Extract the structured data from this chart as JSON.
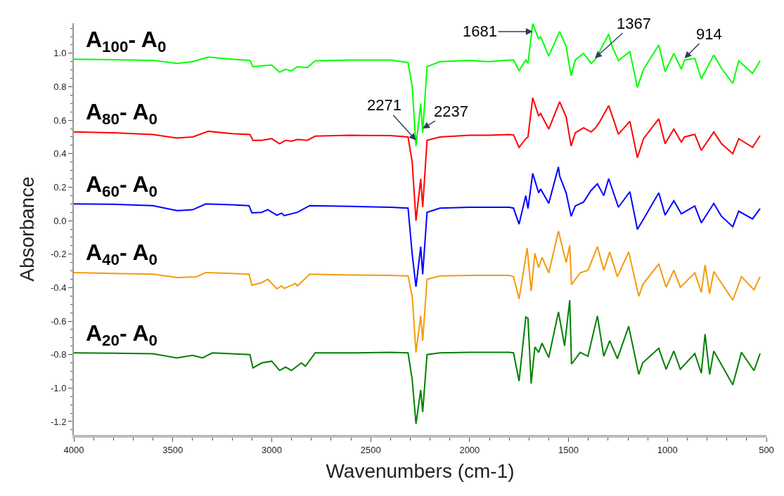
{
  "chart_data": {
    "type": "line",
    "xlabel": "Wavenumbers (cm-1)",
    "ylabel": "Absorbance",
    "xlim": [
      4000,
      500
    ],
    "xticks": [
      4000,
      3500,
      3000,
      2500,
      2000,
      1500,
      1000,
      500
    ],
    "ylim": [
      -1.28,
      1.18
    ],
    "yticks": [
      {
        "value": -1.2,
        "label": "-1.2"
      },
      {
        "value": -1.0,
        "label": "-1.0"
      },
      {
        "value": -0.8,
        "label": "-0.8"
      },
      {
        "value": -0.6,
        "label": "-0.6"
      },
      {
        "value": -0.4,
        "label": "-0.4"
      },
      {
        "value": -0.2,
        "label": "-0.2"
      },
      {
        "value": 0.0,
        "label": "0.0"
      },
      {
        "value": 0.2,
        "label": "0.2"
      },
      {
        "value": 0.4,
        "label": "0.4"
      },
      {
        "value": 0.6,
        "label": "0.6"
      },
      {
        "value": 0.8,
        "label": "0.8"
      },
      {
        "value": 1.0,
        "label": "1.0"
      }
    ],
    "line_style": "solid",
    "series": [
      {
        "name": "A$_{100}$- A$_{0}$",
        "color": "#00ff00",
        "x": [
          4000,
          3800,
          3600,
          3480,
          3400,
          3320,
          3200,
          3110,
          3095,
          3050,
          3000,
          2960,
          2930,
          2900,
          2870,
          2820,
          2780,
          2600,
          2400,
          2311,
          2290,
          2271,
          2247,
          2237,
          2215,
          2150,
          2000,
          1904,
          1800,
          1778,
          1750,
          1716,
          1705,
          1681,
          1651,
          1641,
          1600,
          1545,
          1512,
          1487,
          1466,
          1424,
          1386,
          1367,
          1348,
          1297,
          1283,
          1248,
          1190,
          1152,
          1121,
          1044,
          1012,
          968,
          930,
          914,
          862,
          829,
          766,
          727,
          670,
          640,
          570,
          532
        ],
        "values": [
          0.965,
          0.962,
          0.958,
          0.94,
          0.95,
          0.977,
          0.965,
          0.958,
          0.92,
          0.925,
          0.93,
          0.887,
          0.905,
          0.895,
          0.92,
          0.915,
          0.955,
          0.96,
          0.96,
          0.945,
          0.8,
          0.445,
          0.7,
          0.525,
          0.92,
          0.95,
          0.958,
          0.95,
          0.96,
          0.96,
          0.897,
          0.96,
          0.94,
          1.177,
          1.084,
          1.1,
          0.983,
          1.13,
          1.04,
          0.866,
          0.96,
          1.0,
          0.94,
          0.96,
          1.0,
          1.115,
          1.05,
          0.957,
          1.01,
          0.796,
          0.905,
          1.05,
          0.89,
          1.0,
          0.905,
          0.96,
          0.97,
          0.847,
          0.99,
          0.91,
          0.82,
          0.955,
          0.88,
          0.955
        ]
      },
      {
        "name": "A$_{80}$- A$_{0}$",
        "color": "#ff0000",
        "x": [
          4000,
          3800,
          3600,
          3480,
          3400,
          3320,
          3200,
          3110,
          3095,
          3050,
          3000,
          2960,
          2930,
          2900,
          2870,
          2820,
          2780,
          2600,
          2400,
          2311,
          2290,
          2271,
          2247,
          2237,
          2215,
          2150,
          2000,
          1904,
          1800,
          1778,
          1750,
          1716,
          1705,
          1681,
          1651,
          1641,
          1600,
          1545,
          1512,
          1487,
          1466,
          1424,
          1386,
          1367,
          1348,
          1297,
          1283,
          1248,
          1190,
          1152,
          1121,
          1044,
          1012,
          968,
          930,
          914,
          862,
          829,
          766,
          727,
          670,
          640,
          570,
          532
        ],
        "values": [
          0.53,
          0.525,
          0.515,
          0.494,
          0.5,
          0.534,
          0.52,
          0.515,
          0.48,
          0.48,
          0.49,
          0.46,
          0.48,
          0.475,
          0.485,
          0.48,
          0.505,
          0.51,
          0.508,
          0.5,
          0.35,
          0.0,
          0.25,
          0.08,
          0.48,
          0.5,
          0.51,
          0.51,
          0.515,
          0.512,
          0.438,
          0.49,
          0.5,
          0.734,
          0.625,
          0.64,
          0.547,
          0.71,
          0.62,
          0.446,
          0.524,
          0.555,
          0.53,
          0.55,
          0.58,
          0.687,
          0.64,
          0.516,
          0.594,
          0.376,
          0.49,
          0.609,
          0.46,
          0.547,
          0.469,
          0.5,
          0.516,
          0.42,
          0.53,
          0.46,
          0.4,
          0.49,
          0.438,
          0.508
        ]
      },
      {
        "name": "A$_{60}$- A$_{0}$",
        "color": "#0000ff",
        "x": [
          4000,
          3800,
          3600,
          3480,
          3400,
          3333,
          3200,
          3115,
          3100,
          3050,
          3020,
          2974,
          2950,
          2937,
          2870,
          2808,
          2600,
          2400,
          2311,
          2290,
          2271,
          2247,
          2237,
          2215,
          2150,
          2000,
          1800,
          1778,
          1750,
          1716,
          1705,
          1681,
          1651,
          1641,
          1600,
          1551,
          1545,
          1512,
          1487,
          1466,
          1424,
          1386,
          1354,
          1322,
          1297,
          1248,
          1190,
          1152,
          1121,
          1044,
          1012,
          968,
          930,
          862,
          829,
          766,
          727,
          670,
          640,
          570,
          532
        ],
        "values": [
          0.1,
          0.098,
          0.09,
          0.06,
          0.065,
          0.1,
          0.095,
          0.09,
          0.047,
          0.05,
          0.066,
          0.032,
          0.045,
          0.03,
          0.05,
          0.09,
          0.085,
          0.08,
          0.075,
          -0.2,
          -0.395,
          -0.155,
          -0.32,
          0.05,
          0.075,
          0.08,
          0.08,
          0.075,
          -0.021,
          0.15,
          0.072,
          0.282,
          0.166,
          0.189,
          0.103,
          0.321,
          0.267,
          0.166,
          0.026,
          0.088,
          0.111,
          0.181,
          0.22,
          0.15,
          0.251,
          0.08,
          0.173,
          -0.052,
          0.01,
          0.166,
          0.033,
          0.119,
          0.041,
          0.088,
          -0.013,
          0.103,
          0.026,
          -0.036,
          0.057,
          0.01,
          0.072
        ]
      },
      {
        "name": "A$_{40}$- A$_{0}$",
        "color": "#f59a0c",
        "x": [
          4000,
          3800,
          3600,
          3480,
          3380,
          3333,
          3200,
          3115,
          3100,
          3050,
          3020,
          2974,
          2950,
          2937,
          2880,
          2870,
          2808,
          2600,
          2400,
          2311,
          2290,
          2271,
          2247,
          2237,
          2215,
          2150,
          2000,
          1800,
          1778,
          1750,
          1709,
          1689,
          1670,
          1651,
          1634,
          1600,
          1551,
          1512,
          1494,
          1485,
          1441,
          1402,
          1354,
          1322,
          1292,
          1253,
          1196,
          1145,
          1125,
          1044,
          1007,
          968,
          935,
          862,
          829,
          810,
          787,
          766,
          670,
          626,
          563,
          532
        ],
        "values": [
          -0.31,
          -0.315,
          -0.32,
          -0.34,
          -0.335,
          -0.31,
          -0.315,
          -0.32,
          -0.386,
          -0.37,
          -0.35,
          -0.407,
          -0.39,
          -0.405,
          -0.375,
          -0.39,
          -0.32,
          -0.325,
          -0.327,
          -0.33,
          -0.45,
          -0.787,
          -0.569,
          -0.717,
          -0.35,
          -0.33,
          -0.327,
          -0.327,
          -0.335,
          -0.468,
          -0.164,
          -0.421,
          -0.195,
          -0.281,
          -0.219,
          -0.312,
          -0.063,
          -0.25,
          -0.148,
          -0.382,
          -0.312,
          -0.296,
          -0.156,
          -0.296,
          -0.187,
          -0.335,
          -0.187,
          -0.452,
          -0.382,
          -0.258,
          -0.398,
          -0.296,
          -0.398,
          -0.312,
          -0.429,
          -0.265,
          -0.436,
          -0.304,
          -0.475,
          -0.335,
          -0.413,
          -0.335
        ]
      },
      {
        "name": "A$_{20}$- A$_{0}$",
        "color": "#008000",
        "x": [
          4000,
          3800,
          3600,
          3480,
          3400,
          3350,
          3300,
          3110,
          3095,
          3050,
          3000,
          2960,
          2930,
          2900,
          2850,
          2830,
          2780,
          2600,
          2400,
          2311,
          2290,
          2271,
          2247,
          2237,
          2215,
          2150,
          2000,
          1800,
          1778,
          1750,
          1716,
          1705,
          1689,
          1670,
          1651,
          1634,
          1600,
          1551,
          1520,
          1494,
          1485,
          1441,
          1402,
          1354,
          1322,
          1292,
          1253,
          1196,
          1145,
          1125,
          1044,
          1007,
          968,
          935,
          862,
          829,
          810,
          787,
          766,
          670,
          626,
          563,
          532
        ],
        "values": [
          -0.79,
          -0.792,
          -0.795,
          -0.82,
          -0.805,
          -0.82,
          -0.79,
          -0.8,
          -0.88,
          -0.85,
          -0.84,
          -0.895,
          -0.875,
          -0.895,
          -0.85,
          -0.87,
          -0.79,
          -0.79,
          -0.787,
          -0.79,
          -0.95,
          -1.214,
          -1.012,
          -1.143,
          -0.8,
          -0.79,
          -0.787,
          -0.787,
          -0.79,
          -0.958,
          -0.576,
          -0.584,
          -0.973,
          -0.755,
          -0.787,
          -0.732,
          -0.818,
          -0.545,
          -0.748,
          -0.475,
          -0.857,
          -0.787,
          -0.81,
          -0.569,
          -0.81,
          -0.717,
          -0.825,
          -0.631,
          -0.919,
          -0.849,
          -0.763,
          -0.888,
          -0.779,
          -0.888,
          -0.794,
          -0.911,
          -0.678,
          -0.919,
          -0.779,
          -0.981,
          -0.787,
          -0.896,
          -0.794
        ]
      }
    ],
    "annotations": [
      {
        "text": "1681",
        "x": 1681,
        "y": 1.13
      },
      {
        "text": "1367",
        "x": 1367,
        "y": 0.97
      },
      {
        "text": "914",
        "x": 914,
        "y": 0.97
      },
      {
        "text": "2271",
        "x": 2271,
        "y": 0.48
      },
      {
        "text": "2237",
        "x": 2237,
        "y": 0.55
      }
    ]
  }
}
